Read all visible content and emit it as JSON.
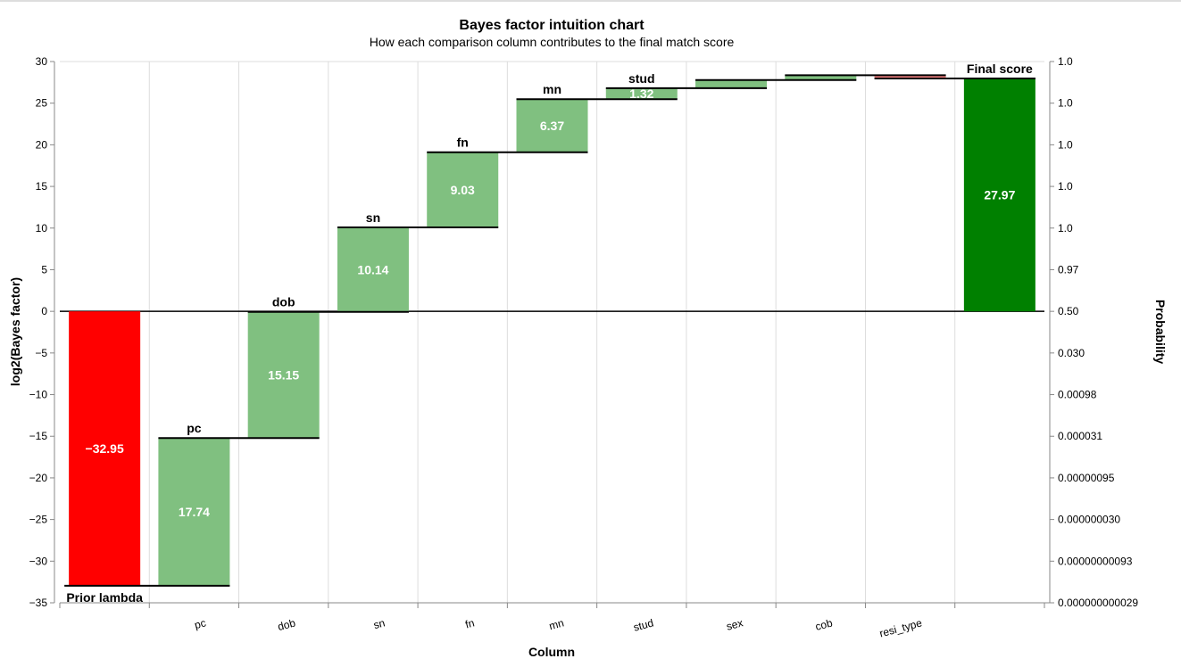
{
  "chart_data": {
    "type": "waterfall",
    "title": "Bayes factor intuition chart",
    "subtitle": "How each comparison column contributes to the final match score",
    "x_label": "Column",
    "y_label": "log2(Bayes factor)",
    "y2_label": "Probability",
    "categories": [
      null,
      "pc",
      "dob",
      "sn",
      "fn",
      "mn",
      "stud",
      "sex",
      "cob",
      "resi_type",
      null
    ],
    "bar_labels": [
      "Prior lambda",
      "pc",
      "dob",
      "sn",
      "fn",
      "mn",
      "stud",
      null,
      null,
      null,
      "Final score"
    ],
    "measure": [
      "relative",
      "relative",
      "relative",
      "relative",
      "relative",
      "relative",
      "relative",
      "relative",
      "relative",
      "relative",
      "total"
    ],
    "values": [
      -32.95,
      17.74,
      15.15,
      10.14,
      9.03,
      6.37,
      1.32,
      0.98,
      0.57,
      -0.38,
      27.97
    ],
    "value_labels": [
      "−32.95",
      "17.74",
      "15.15",
      "10.14",
      "9.03",
      "6.37",
      "1.32",
      null,
      null,
      null,
      "27.97"
    ],
    "colors": [
      "#ff0000",
      "#80c080",
      "#80c080",
      "#80c080",
      "#80c080",
      "#80c080",
      "#80c080",
      "#80c080",
      "#80c080",
      "#f08080",
      "#008000"
    ],
    "ylim": [
      -35,
      30
    ],
    "yticks": [
      {
        "value": -35,
        "label": "−35"
      },
      {
        "value": -30,
        "label": "−30"
      },
      {
        "value": -25,
        "label": "−25"
      },
      {
        "value": -20,
        "label": "−20"
      },
      {
        "value": -15,
        "label": "−15"
      },
      {
        "value": -10,
        "label": "−10"
      },
      {
        "value": -5,
        "label": "−5"
      },
      0,
      5,
      10,
      15,
      20,
      25,
      30
    ],
    "y2scale": "logit2",
    "y2lim": [
      2.9103830456e-11,
      0.9999999990686774
    ],
    "y2ticks": [
      {
        "value": 2.9103830456e-11,
        "label": "0.000000000029"
      },
      {
        "value": 9.313225737e-10,
        "label": "0.00000000093"
      },
      {
        "value": 2.9802321499e-08,
        "label": "0.000000030"
      },
      {
        "value": 9.5367340696e-07,
        "label": "0.00000095"
      },
      {
        "value": 3.0516036498e-05,
        "label": "0.000031"
      },
      {
        "value": 0.0009756097560975609,
        "label": "0.00098"
      },
      {
        "value": 0.030303030303030304,
        "label": "0.030"
      },
      {
        "value": 0.5,
        "label": "0.50"
      },
      {
        "value": 0.9696969696969697,
        "label": "0.97"
      },
      {
        "value": 0.9990243902439024,
        "label": "1.0"
      },
      {
        "value": 0.9999694833578318,
        "label": "1.0"
      },
      {
        "value": 0.9999990463265931,
        "label": "1.0"
      },
      {
        "value": 0.9999999701976785,
        "label": "1.0"
      },
      {
        "value": 0.9999999990686774,
        "label": "1.0"
      }
    ]
  }
}
